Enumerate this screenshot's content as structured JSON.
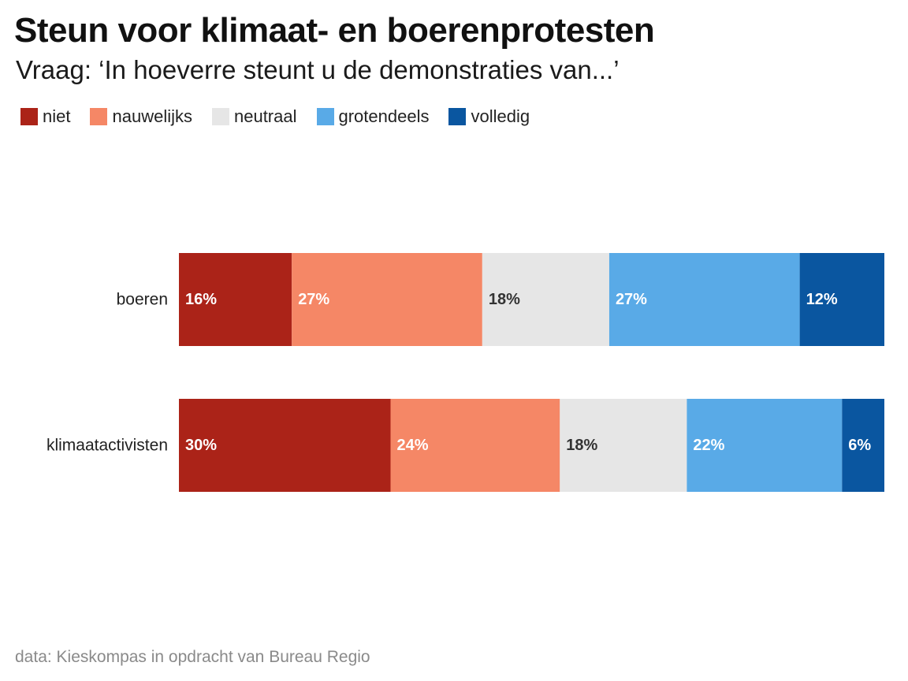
{
  "chart_data": {
    "type": "bar",
    "orientation": "horizontal",
    "stacked": true,
    "normalized": true,
    "title": "Steun voor klimaat- en boerenprotesten",
    "subtitle": "Vraag: ‘In hoeverre steunt u de demonstraties van...’",
    "source": "data: Kieskompas in opdracht van Bureau Regio",
    "xlabel": "",
    "ylabel": "",
    "grid": false,
    "legend_position": "top-left",
    "categories": [
      "boeren",
      "klimaatactivisten"
    ],
    "series": [
      {
        "name": "niet",
        "color": "#ab2318",
        "label_color": "#ffffff",
        "values": [
          16,
          30
        ],
        "labels": [
          "16%",
          "30%"
        ]
      },
      {
        "name": "nauwelijks",
        "color": "#f58766",
        "label_color": "#ffffff",
        "values": [
          27,
          24
        ],
        "labels": [
          "27%",
          "24%"
        ]
      },
      {
        "name": "neutraal",
        "color": "#e6e6e6",
        "label_color": "#333333",
        "values": [
          18,
          18
        ],
        "labels": [
          "18%",
          "18%"
        ]
      },
      {
        "name": "grotendeels",
        "color": "#59aae7",
        "label_color": "#ffffff",
        "values": [
          27,
          22
        ],
        "labels": [
          "27%",
          "22%"
        ]
      },
      {
        "name": "volledig",
        "color": "#0a56a0",
        "label_color": "#ffffff",
        "values": [
          12,
          6
        ],
        "labels": [
          "12%",
          "6%"
        ]
      }
    ]
  }
}
